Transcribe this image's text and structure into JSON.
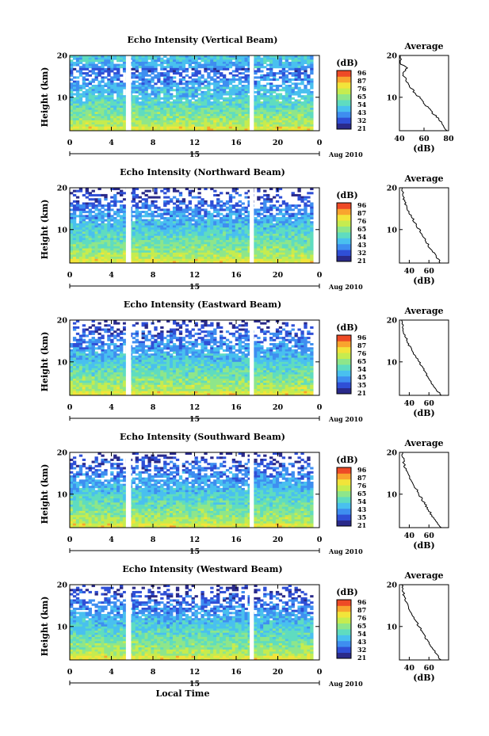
{
  "x_axis": {
    "ticks": [
      "0",
      "4",
      "8",
      "12",
      "16",
      "20",
      "0"
    ],
    "day_label": "15",
    "date_label": "Aug 2010",
    "xlabel": "Local Time"
  },
  "ylabel": "Height (km)",
  "colorbar": {
    "unit_label": "(dB)",
    "colors": [
      "#2a2a8a",
      "#2f4fd6",
      "#3e8ef0",
      "#49c0ef",
      "#5fdcc0",
      "#8ee68a",
      "#c6ec4f",
      "#f2e43a",
      "#f9a42e",
      "#ee4a26"
    ]
  },
  "avg_panel": {
    "title": "Average",
    "xlabel": "(dB)",
    "y_ticks": [
      "20",
      "10"
    ]
  },
  "panels": [
    {
      "title": "Echo Intensity (Vertical Beam)",
      "y_ticks": [
        "20",
        "10"
      ],
      "cbar_ticks": [
        "96",
        "87",
        "76",
        "65",
        "54",
        "43",
        "32",
        "21"
      ],
      "avg_x_ticks": [
        "40",
        "60",
        "80"
      ]
    },
    {
      "title": "Echo Intensity (Northward Beam)",
      "y_ticks": [
        "20",
        "10"
      ],
      "cbar_ticks": [
        "96",
        "87",
        "76",
        "65",
        "54",
        "43",
        "32",
        "21"
      ],
      "avg_x_ticks": [
        "40",
        "60"
      ]
    },
    {
      "title": "Echo Intensity (Eastward Beam)",
      "y_ticks": [
        "20",
        "10"
      ],
      "cbar_ticks": [
        "96",
        "87",
        "76",
        "65",
        "54",
        "45",
        "35",
        "21"
      ],
      "avg_x_ticks": [
        "40",
        "60"
      ]
    },
    {
      "title": "Echo Intensity (Southward Beam)",
      "y_ticks": [
        "20",
        "10"
      ],
      "cbar_ticks": [
        "96",
        "87",
        "76",
        "65",
        "54",
        "43",
        "35",
        "21"
      ],
      "avg_x_ticks": [
        "40",
        "60"
      ]
    },
    {
      "title": "Echo Intensity (Westward Beam)",
      "y_ticks": [
        "20",
        "10"
      ],
      "cbar_ticks": [
        "96",
        "87",
        "76",
        "65",
        "54",
        "43",
        "32",
        "21"
      ],
      "avg_x_ticks": [
        "40",
        "60"
      ]
    }
  ],
  "chart_data": [
    {
      "type": "heatmap",
      "title": "Echo Intensity (Vertical Beam)",
      "ylabel": "Height (km)",
      "xlabel": "Local Time",
      "x_range_hours": [
        0,
        24
      ],
      "y_range_km": [
        2,
        20
      ],
      "data_gaps_hours": [
        [
          5.4,
          5.9
        ],
        [
          17.3,
          17.7
        ]
      ],
      "colorbar_range_db": [
        21,
        96
      ],
      "average_profile": {
        "xlabel": "(dB)",
        "x_ticks": [
          40,
          60,
          80
        ],
        "height_km": [
          2,
          4,
          6,
          8,
          10,
          12,
          14,
          16,
          17,
          18,
          19,
          20
        ],
        "db": [
          78,
          74,
          68,
          62,
          56,
          50,
          45,
          43,
          47,
          40,
          42,
          40
        ]
      }
    },
    {
      "type": "heatmap",
      "title": "Echo Intensity (Northward Beam)",
      "ylabel": "Height (km)",
      "xlabel": "Local Time",
      "x_range_hours": [
        0,
        24
      ],
      "y_range_km": [
        2,
        20
      ],
      "data_gaps_hours": [
        [
          5.4,
          5.9
        ],
        [
          17.3,
          17.7
        ]
      ],
      "colorbar_range_db": [
        21,
        96
      ],
      "average_profile": {
        "xlabel": "(dB)",
        "x_ticks": [
          40,
          60
        ],
        "height_km": [
          2,
          4,
          6,
          8,
          10,
          12,
          14,
          16,
          18,
          20
        ],
        "db": [
          72,
          66,
          60,
          55,
          50,
          45,
          40,
          36,
          34,
          33
        ]
      }
    },
    {
      "type": "heatmap",
      "title": "Echo Intensity (Eastward Beam)",
      "ylabel": "Height (km)",
      "xlabel": "Local Time",
      "x_range_hours": [
        0,
        24
      ],
      "y_range_km": [
        2,
        20
      ],
      "data_gaps_hours": [
        [
          5.4,
          5.9
        ],
        [
          17.3,
          17.7
        ]
      ],
      "colorbar_range_db": [
        21,
        96
      ],
      "average_profile": {
        "xlabel": "(dB)",
        "x_ticks": [
          40,
          60
        ],
        "height_km": [
          2,
          4,
          6,
          8,
          10,
          12,
          14,
          16,
          18,
          20
        ],
        "db": [
          72,
          66,
          60,
          55,
          50,
          45,
          40,
          36,
          34,
          33
        ]
      }
    },
    {
      "type": "heatmap",
      "title": "Echo Intensity (Southward Beam)",
      "ylabel": "Height (km)",
      "xlabel": "Local Time",
      "x_range_hours": [
        0,
        24
      ],
      "y_range_km": [
        2,
        20
      ],
      "data_gaps_hours": [
        [
          5.4,
          5.9
        ],
        [
          17.3,
          17.7
        ]
      ],
      "colorbar_range_db": [
        21,
        96
      ],
      "average_profile": {
        "xlabel": "(dB)",
        "x_ticks": [
          40,
          60
        ],
        "height_km": [
          2,
          4,
          6,
          8,
          10,
          12,
          14,
          16,
          18,
          20
        ],
        "db": [
          72,
          66,
          60,
          55,
          50,
          45,
          40,
          36,
          34,
          33
        ]
      }
    },
    {
      "type": "heatmap",
      "title": "Echo Intensity (Westward Beam)",
      "ylabel": "Height (km)",
      "xlabel": "Local Time",
      "x_range_hours": [
        0,
        24
      ],
      "y_range_km": [
        2,
        20
      ],
      "data_gaps_hours": [
        [
          5.4,
          5.9
        ],
        [
          17.3,
          17.7
        ]
      ],
      "colorbar_range_db": [
        21,
        96
      ],
      "average_profile": {
        "xlabel": "(dB)",
        "x_ticks": [
          40,
          60
        ],
        "height_km": [
          2,
          4,
          6,
          8,
          10,
          12,
          14,
          16,
          18,
          20
        ],
        "db": [
          72,
          66,
          60,
          55,
          50,
          45,
          40,
          36,
          34,
          33
        ]
      }
    }
  ]
}
